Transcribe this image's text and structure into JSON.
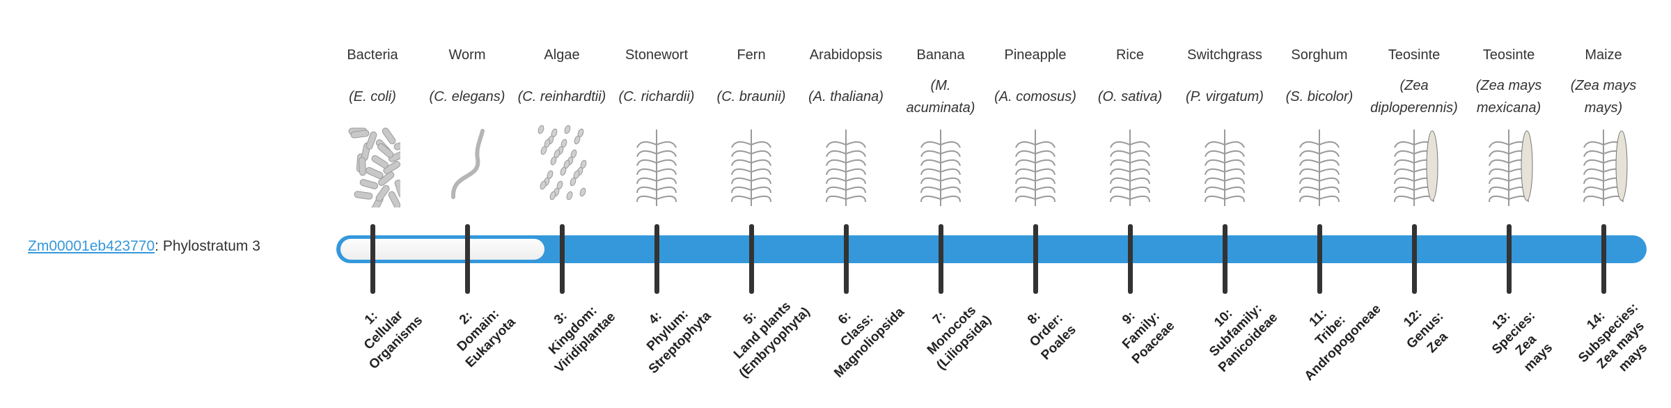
{
  "gene": {
    "id": "Zm00001eb423770",
    "suffix": ": Phylostratum 3"
  },
  "phylostratum_level": 3,
  "colors": {
    "bar": "#3498db",
    "tick": "#333333",
    "link": "#3498db"
  },
  "organisms": [
    {
      "common": "Bacteria",
      "species": "(E. coli)",
      "icon": "bacteria-icon"
    },
    {
      "common": "Worm",
      "species": "(C. elegans)",
      "icon": "worm-icon"
    },
    {
      "common": "Algae",
      "species": "(C. reinhardtii)",
      "icon": "algae-icon"
    },
    {
      "common": "Stonewort",
      "species": "(C. richardii)",
      "icon": "stonewort-icon"
    },
    {
      "common": "Fern",
      "species": "(C. braunii)",
      "icon": "fern-icon"
    },
    {
      "common": "Arabidopsis",
      "species": "(A. thaliana)",
      "icon": "arabidopsis-icon"
    },
    {
      "common": "Banana",
      "species": "(M. acuminata)",
      "icon": "banana-icon"
    },
    {
      "common": "Pineapple",
      "species": "(A. comosus)",
      "icon": "pineapple-icon"
    },
    {
      "common": "Rice",
      "species": "(O. sativa)",
      "icon": "rice-icon"
    },
    {
      "common": "Switchgrass",
      "species": "(P. virgatum)",
      "icon": "switchgrass-icon"
    },
    {
      "common": "Sorghum",
      "species": "(S. bicolor)",
      "icon": "sorghum-icon"
    },
    {
      "common": "Teosinte",
      "species": "(Zea diploperennis)",
      "icon": "teosinte-icon"
    },
    {
      "common": "Teosinte",
      "species": "(Zea mays mexicana)",
      "icon": "teosinte-mexicana-icon"
    },
    {
      "common": "Maize",
      "species": "(Zea mays mays)",
      "icon": "maize-icon"
    }
  ],
  "strata": [
    [
      "1:",
      "Cellular",
      "Organisms"
    ],
    [
      "2:",
      "Domain:",
      "Eukaryota"
    ],
    [
      "3:",
      "Kingdom:",
      "Viridiplantae"
    ],
    [
      "4:",
      "Phylum:",
      "Streptophyta"
    ],
    [
      "5:",
      "Land plants",
      "(Embryophyta)"
    ],
    [
      "6:",
      "Class:",
      "Magnoliopsida"
    ],
    [
      "7:",
      "Monocots",
      "(Liliopsida)"
    ],
    [
      "8:",
      "Order:",
      "Poales"
    ],
    [
      "9:",
      "Family:",
      "Poaceae"
    ],
    [
      "10:",
      "Subfamily:",
      "Panicoideae"
    ],
    [
      "11:",
      "Tribe:",
      "Andropogoneae"
    ],
    [
      "12:",
      "Genus:",
      "Zea"
    ],
    [
      "13:",
      "Species:",
      "Zea",
      "mays"
    ],
    [
      "14:",
      "Subspecies:",
      "Zea mays",
      "mays"
    ]
  ]
}
